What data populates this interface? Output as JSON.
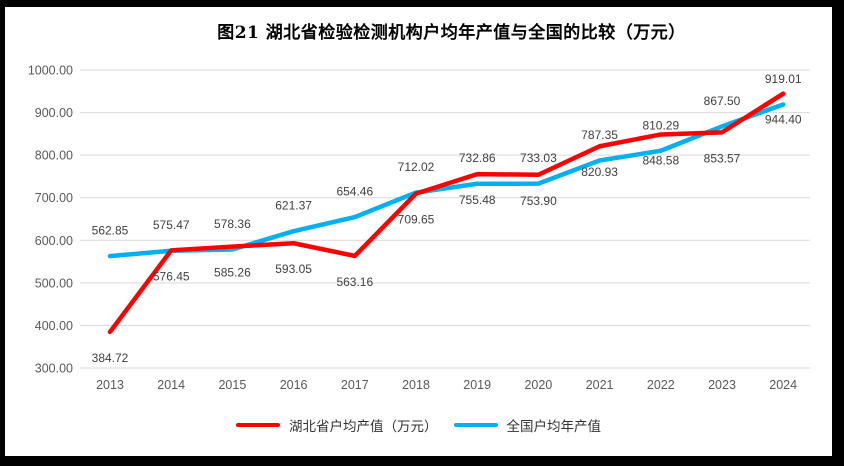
{
  "figure": {
    "title": "图21 湖北省检验检测机构户均年产值与全国的比较（万元）"
  },
  "chart_data": {
    "type": "line",
    "title": "图21 湖北省检验检测机构户均年产值与全国的比较（万元）",
    "categories": [
      "2013",
      "2014",
      "2015",
      "2016",
      "2017",
      "2018",
      "2019",
      "2020",
      "2021",
      "2022",
      "2023",
      "2024"
    ],
    "series": [
      {
        "name": "湖北省户均产值（万元）",
        "color": "#FF0000",
        "label_position": "below",
        "values": [
          384.72,
          576.45,
          585.26,
          593.05,
          563.16,
          709.65,
          755.48,
          753.9,
          820.93,
          848.58,
          853.57,
          944.4
        ]
      },
      {
        "name": "全国户均年产值",
        "color": "#00B0F0",
        "label_position": "above",
        "values": [
          562.85,
          575.47,
          578.36,
          621.37,
          654.46,
          712.02,
          732.86,
          733.03,
          787.35,
          810.29,
          867.5,
          919.01
        ]
      }
    ],
    "ylim": [
      300,
      1000
    ],
    "yticks": [
      300,
      400,
      500,
      600,
      700,
      800,
      900,
      1000
    ],
    "ytick_labels": [
      "300.00",
      "400.00",
      "500.00",
      "600.00",
      "700.00",
      "800.00",
      "900.00",
      "1000.00"
    ],
    "data_label_decimals": 2,
    "grid": true,
    "legend_position": "bottom",
    "data_labels": true
  },
  "colors": {
    "frame": "#000000",
    "background": "#FFFFFF",
    "gridline": "#D9D9D9",
    "axis_text": "#595959",
    "data_label_text": "#404040",
    "title_text": "#000000"
  }
}
